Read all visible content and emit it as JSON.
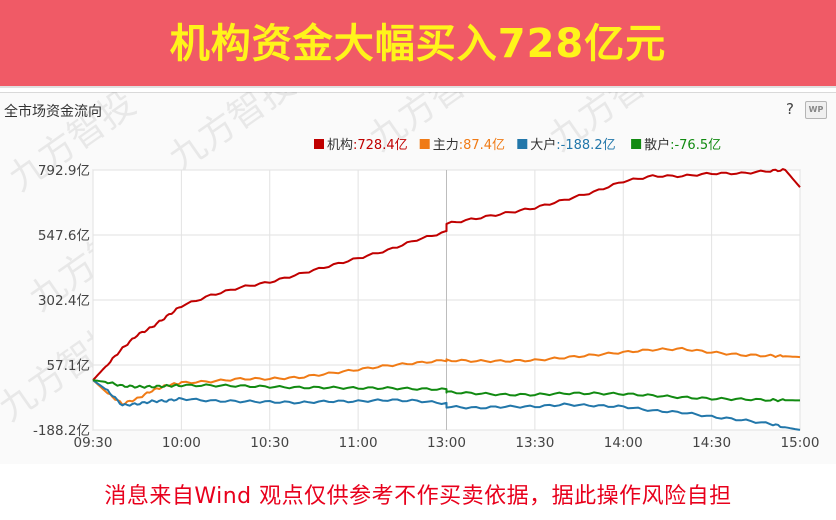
{
  "banner": {
    "title": "机构资金大幅买入728亿元"
  },
  "panel": {
    "title": "全市场资金流向",
    "help_icon": "question-icon",
    "wp_icon": "wp-badge-icon",
    "wp_label": "WP"
  },
  "watermark": "九方智投",
  "footer": {
    "disclaimer": "消息来自Wind  观点仅供参考不作买卖依据，据此操作风险自担"
  },
  "colors": {
    "banner_bg": "#f05a66",
    "banner_text": "#fff41a",
    "institution": "#c00000",
    "main": "#f07b16",
    "large": "#2277aa",
    "retail": "#118a11",
    "footer_text": "#e8001c"
  },
  "chart_data": {
    "type": "line",
    "title": "全市场资金流向",
    "unit": "亿",
    "y_ticks": [
      "792.9亿",
      "547.6亿",
      "302.4亿",
      "57.1亿",
      "-188.2亿"
    ],
    "y_tick_values": [
      792.9,
      547.6,
      302.4,
      57.1,
      -188.2
    ],
    "ylim": [
      -188.2,
      792.9
    ],
    "x_ticks": [
      "09:30",
      "10:00",
      "10:30",
      "11:00",
      "13:00",
      "13:30",
      "14:00",
      "14:30",
      "15:00"
    ],
    "x": [
      "09:30",
      "09:35",
      "09:40",
      "09:45",
      "09:50",
      "09:55",
      "10:00",
      "10:10",
      "10:20",
      "10:30",
      "10:40",
      "10:50",
      "11:00",
      "11:10",
      "11:20",
      "11:30",
      "13:00",
      "13:10",
      "13:20",
      "13:30",
      "13:40",
      "13:50",
      "14:00",
      "14:10",
      "14:20",
      "14:30",
      "14:40",
      "14:50",
      "14:55",
      "15:00"
    ],
    "legend_position": "top-right",
    "grid": true,
    "series": [
      {
        "name": "机构",
        "legend_value": ":728.4亿",
        "color": "#c00000",
        "values": [
          0,
          60,
          120,
          170,
          200,
          240,
          280,
          320,
          350,
          370,
          400,
          430,
          460,
          490,
          530,
          560,
          590,
          610,
          630,
          650,
          680,
          710,
          750,
          770,
          770,
          780,
          780,
          790,
          793,
          728
        ]
      },
      {
        "name": "主力",
        "legend_value": ":87.4亿",
        "color": "#f07b16",
        "values": [
          0,
          -50,
          -90,
          -70,
          -40,
          -20,
          -10,
          -5,
          5,
          5,
          10,
          25,
          40,
          55,
          65,
          75,
          75,
          72,
          72,
          75,
          85,
          95,
          105,
          115,
          118,
          105,
          95,
          92,
          90,
          87
        ]
      },
      {
        "name": "大户",
        "legend_value": ":-188.2亿",
        "color": "#2277aa",
        "values": [
          0,
          -40,
          -95,
          -90,
          -80,
          -78,
          -70,
          -78,
          -80,
          -82,
          -85,
          -80,
          -80,
          -75,
          -78,
          -88,
          -100,
          -105,
          -100,
          -100,
          -92,
          -96,
          -100,
          -115,
          -122,
          -138,
          -150,
          -165,
          -178,
          -188
        ]
      },
      {
        "name": "散户",
        "legend_value": ":-76.5亿",
        "color": "#118a11",
        "values": [
          0,
          -8,
          -22,
          -25,
          -25,
          -22,
          -20,
          -20,
          -22,
          -25,
          -28,
          -28,
          -30,
          -30,
          -33,
          -35,
          -45,
          -50,
          -55,
          -55,
          -50,
          -50,
          -52,
          -58,
          -65,
          -70,
          -72,
          -75,
          -76,
          -76.5
        ]
      }
    ]
  }
}
